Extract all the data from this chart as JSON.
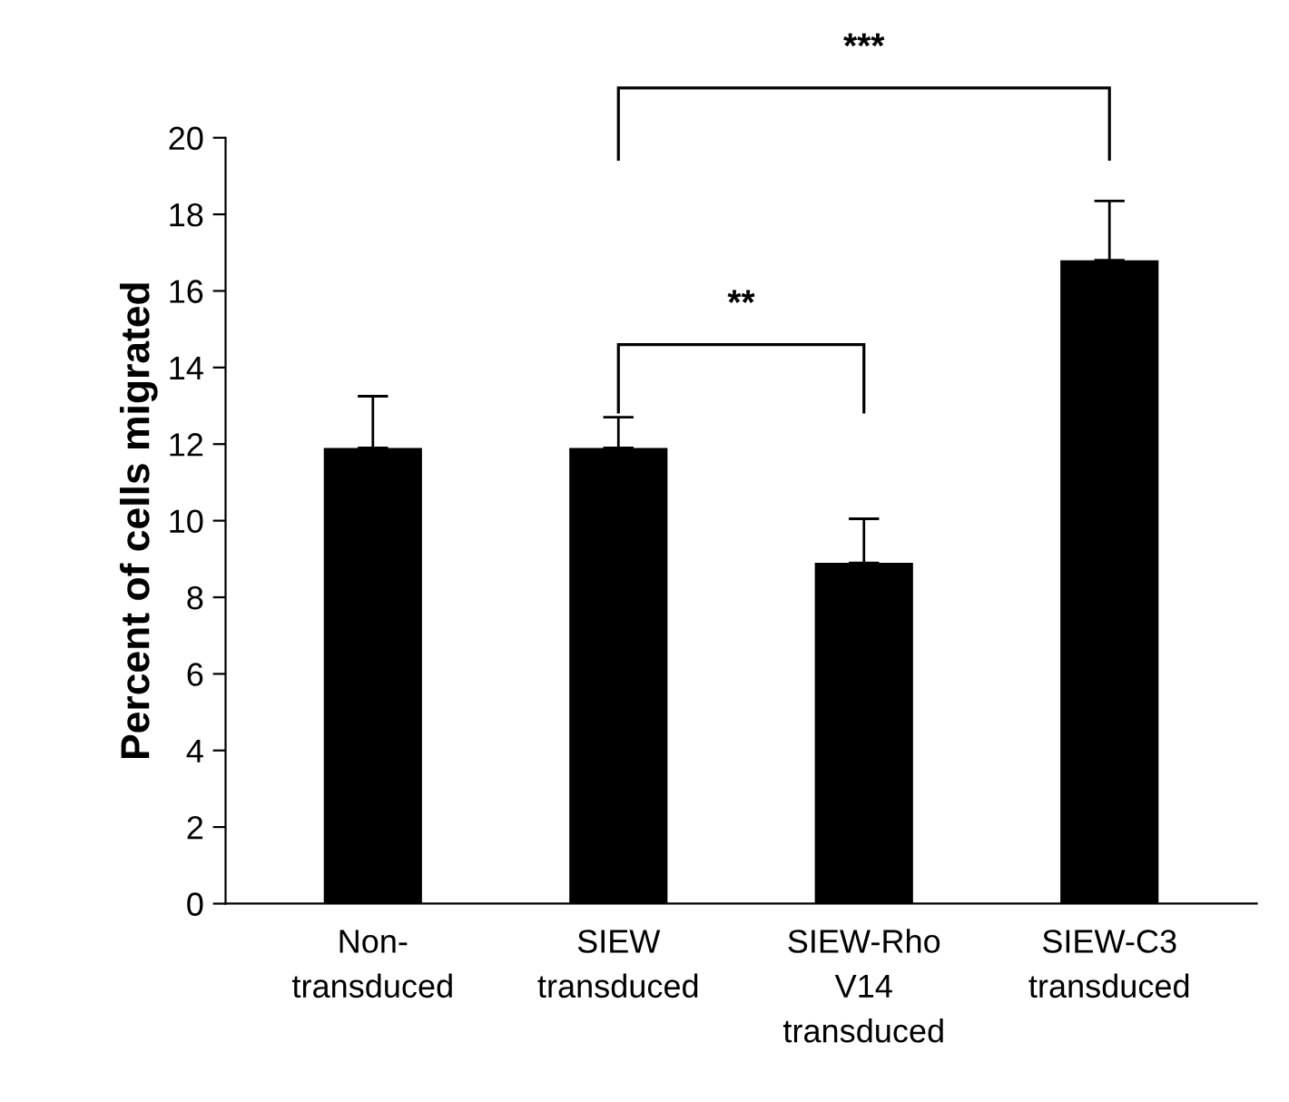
{
  "chart_data": {
    "type": "bar",
    "ylabel": "Percent of cells migrated",
    "categories": [
      "Non-\ntransduced",
      "SIEW\ntransduced",
      "SIEW-Rho\nV14\ntransduced",
      "SIEW-C3\ntransduced"
    ],
    "values": [
      11.9,
      11.9,
      8.9,
      16.8
    ],
    "errors": [
      [
        11.9,
        13.25
      ],
      [
        11.9,
        12.7
      ],
      [
        8.9,
        10.05
      ],
      [
        16.8,
        18.35
      ]
    ],
    "color": "#000000",
    "ylim": [
      0,
      20
    ],
    "yticks": [
      0,
      2,
      4,
      6,
      8,
      10,
      12,
      14,
      16,
      18,
      20
    ],
    "grid": false,
    "annotations": [
      "**",
      "***"
    ]
  }
}
